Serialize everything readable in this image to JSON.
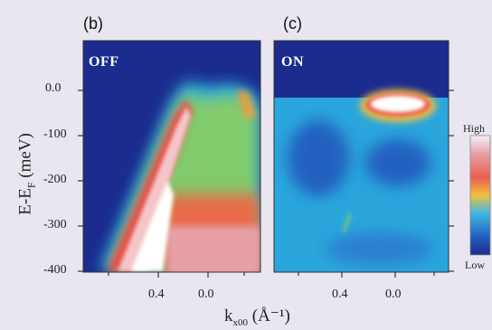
{
  "figure": {
    "panels": [
      {
        "label": "(b)",
        "state": "OFF"
      },
      {
        "label": "(c)",
        "state": "ON"
      }
    ],
    "y_axis": {
      "label": "E-E",
      "label_sub": "F",
      "label_unit": "(meV)",
      "ticks": [
        "0.0",
        "-100",
        "-200",
        "-300",
        "-400"
      ]
    },
    "x_axis": {
      "label": "k",
      "label_sub": "x00",
      "label_unit": "(Å⁻¹)",
      "ticks": [
        "0.4",
        "0.0",
        "0.4",
        "0.0"
      ]
    },
    "colorbar": {
      "high": "High",
      "low": "Low",
      "colors": [
        "#f3f3f8",
        "#e8a0a8",
        "#e86050",
        "#f0c040",
        "#40b8e0",
        "#2060c0",
        "#1a2a8a"
      ]
    }
  },
  "chart_data": [
    {
      "type": "heatmap",
      "title": "OFF",
      "ylabel": "E-E_F (meV)",
      "xlabel": "k_x00 (Å^-1)",
      "ylim": [
        -400,
        0
      ],
      "yticks": [
        0,
        -100,
        -200,
        -300,
        -400
      ],
      "xticks": [
        0.4,
        0.0
      ]
    },
    {
      "type": "heatmap",
      "title": "ON",
      "ylabel": "E-E_F (meV)",
      "xlabel": "k_x00 (Å^-1)",
      "ylim": [
        -400,
        0
      ],
      "yticks": [
        0,
        -100,
        -200,
        -300,
        -400
      ],
      "xticks": [
        0.4,
        0.0
      ]
    }
  ]
}
